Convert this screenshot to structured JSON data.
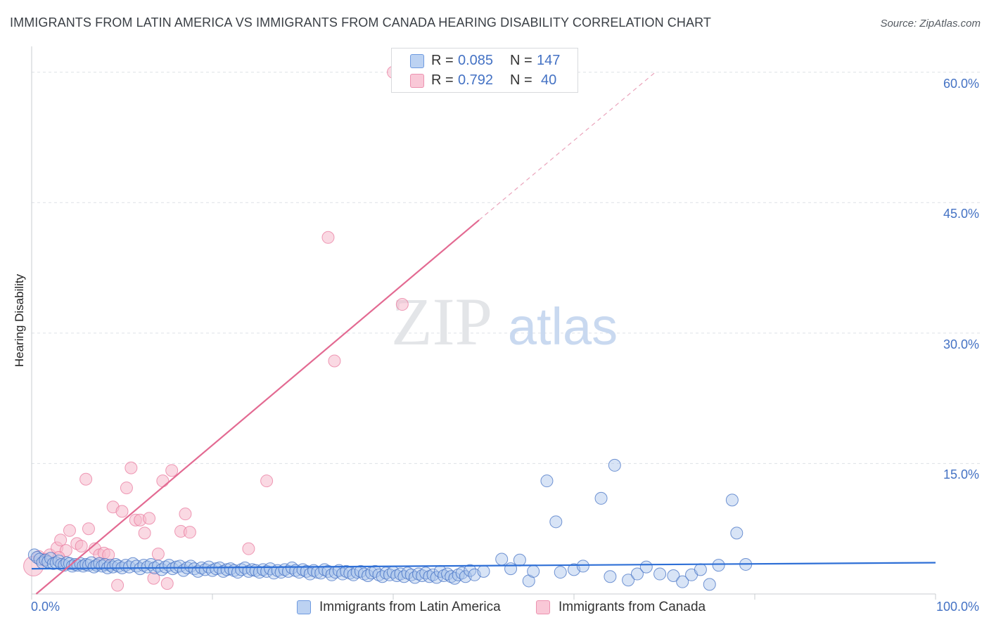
{
  "title": "IMMIGRANTS FROM LATIN AMERICA VS IMMIGRANTS FROM CANADA HEARING DISABILITY CORRELATION CHART",
  "source": "Source: ZipAtlas.com",
  "watermark": {
    "zip": "ZIP",
    "atlas": "atlas"
  },
  "colors": {
    "blue": "#4472c4",
    "blue_fill": "#a9c4ec",
    "blue_line": "#2e6fd6",
    "pink": "#e8739a",
    "pink_fill": "#f6b9cc",
    "pink_line": "#e36a92",
    "grid": "#dde1e6",
    "axis_text": "#4472c4"
  },
  "legend": {
    "rows": [
      {
        "r_label": "R =",
        "r_value": "0.085",
        "n_label": "N =",
        "n_value": "147",
        "color_key": "blue"
      },
      {
        "r_label": "R =",
        "r_value": "0.792",
        "n_label": "N =",
        "n_value": "40",
        "color_key": "pink"
      }
    ]
  },
  "bottom_legend": [
    {
      "label": "Immigrants from Latin America",
      "color_key": "blue"
    },
    {
      "label": "Immigrants from Canada",
      "color_key": "pink"
    }
  ],
  "chart_data": {
    "type": "scatter",
    "title": "IMMIGRANTS FROM LATIN AMERICA VS IMMIGRANTS FROM CANADA HEARING DISABILITY CORRELATION CHART",
    "xlabel": "",
    "ylabel": "Hearing Disability",
    "xlim": [
      0,
      100
    ],
    "ylim": [
      0,
      62
    ],
    "y_ticks": [
      15,
      30,
      45,
      60
    ],
    "y_tick_labels": [
      "15.0%",
      "30.0%",
      "45.0%",
      "60.0%"
    ],
    "x_tick_labels": [
      "0.0%",
      "100.0%"
    ],
    "grid": true,
    "legend_position": "top-center",
    "series": [
      {
        "name": "Immigrants from Latin America",
        "color_key": "blue",
        "R": 0.085,
        "N": 147,
        "trendline": {
          "x0": 0,
          "y0": 2.9,
          "x1": 100,
          "y1": 3.6
        },
        "points": [
          [
            0.3,
            4.5
          ],
          [
            0.6,
            4.2
          ],
          [
            0.9,
            4.0
          ],
          [
            1.2,
            3.6
          ],
          [
            1.5,
            3.9
          ],
          [
            1.8,
            3.7
          ],
          [
            2.1,
            4.1
          ],
          [
            2.4,
            3.5
          ],
          [
            2.7,
            3.6
          ],
          [
            3.0,
            3.8
          ],
          [
            3.3,
            3.4
          ],
          [
            3.6,
            3.3
          ],
          [
            3.9,
            3.6
          ],
          [
            4.2,
            3.5
          ],
          [
            4.5,
            3.2
          ],
          [
            4.8,
            3.4
          ],
          [
            5.1,
            3.3
          ],
          [
            5.4,
            3.5
          ],
          [
            5.7,
            3.2
          ],
          [
            6.0,
            3.4
          ],
          [
            6.3,
            3.3
          ],
          [
            6.6,
            3.6
          ],
          [
            6.9,
            3.1
          ],
          [
            7.2,
            3.3
          ],
          [
            7.5,
            3.5
          ],
          [
            7.8,
            3.2
          ],
          [
            8.1,
            3.4
          ],
          [
            8.4,
            3.0
          ],
          [
            8.7,
            3.3
          ],
          [
            9.0,
            3.1
          ],
          [
            9.3,
            3.4
          ],
          [
            9.6,
            3.2
          ],
          [
            10.0,
            3.0
          ],
          [
            10.4,
            3.3
          ],
          [
            10.8,
            3.1
          ],
          [
            11.2,
            3.5
          ],
          [
            11.6,
            3.2
          ],
          [
            12.0,
            2.9
          ],
          [
            12.4,
            3.3
          ],
          [
            12.8,
            3.1
          ],
          [
            13.2,
            3.4
          ],
          [
            13.6,
            3.0
          ],
          [
            14.0,
            3.2
          ],
          [
            14.4,
            2.8
          ],
          [
            14.8,
            3.1
          ],
          [
            15.2,
            3.3
          ],
          [
            15.6,
            2.9
          ],
          [
            16.0,
            3.1
          ],
          [
            16.4,
            3.2
          ],
          [
            16.8,
            2.7
          ],
          [
            17.2,
            3.0
          ],
          [
            17.6,
            3.2
          ],
          [
            18.0,
            2.9
          ],
          [
            18.4,
            2.6
          ],
          [
            18.8,
            3.0
          ],
          [
            19.2,
            2.8
          ],
          [
            19.6,
            3.1
          ],
          [
            20.0,
            2.7
          ],
          [
            20.4,
            2.9
          ],
          [
            20.8,
            3.0
          ],
          [
            21.2,
            2.6
          ],
          [
            21.6,
            2.8
          ],
          [
            22.0,
            2.9
          ],
          [
            22.4,
            2.7
          ],
          [
            22.8,
            2.5
          ],
          [
            23.2,
            2.8
          ],
          [
            23.6,
            3.0
          ],
          [
            24.0,
            2.6
          ],
          [
            24.4,
            2.8
          ],
          [
            24.8,
            2.7
          ],
          [
            25.2,
            2.5
          ],
          [
            25.6,
            2.8
          ],
          [
            26.0,
            2.6
          ],
          [
            26.4,
            2.9
          ],
          [
            26.8,
            2.4
          ],
          [
            27.2,
            2.7
          ],
          [
            27.6,
            2.5
          ],
          [
            28.0,
            2.8
          ],
          [
            28.4,
            2.6
          ],
          [
            28.8,
            3.0
          ],
          [
            29.2,
            2.7
          ],
          [
            29.6,
            2.5
          ],
          [
            30.0,
            2.8
          ],
          [
            30.4,
            2.6
          ],
          [
            30.8,
            2.3
          ],
          [
            31.2,
            2.7
          ],
          [
            31.6,
            2.5
          ],
          [
            32.0,
            2.4
          ],
          [
            32.4,
            2.8
          ],
          [
            32.8,
            2.6
          ],
          [
            33.2,
            2.2
          ],
          [
            33.6,
            2.5
          ],
          [
            34.0,
            2.7
          ],
          [
            34.4,
            2.3
          ],
          [
            34.8,
            2.6
          ],
          [
            35.2,
            2.4
          ],
          [
            35.6,
            2.2
          ],
          [
            36.0,
            2.5
          ],
          [
            36.4,
            2.6
          ],
          [
            36.8,
            2.3
          ],
          [
            37.2,
            2.1
          ],
          [
            37.6,
            2.4
          ],
          [
            38.0,
            2.6
          ],
          [
            38.4,
            2.2
          ],
          [
            38.8,
            2.0
          ],
          [
            39.2,
            2.4
          ],
          [
            39.6,
            2.2
          ],
          [
            40.0,
            2.5
          ],
          [
            40.4,
            2.1
          ],
          [
            40.8,
            2.3
          ],
          [
            41.2,
            2.0
          ],
          [
            41.6,
            2.4
          ],
          [
            42.0,
            2.2
          ],
          [
            42.4,
            1.9
          ],
          [
            42.8,
            2.3
          ],
          [
            43.2,
            2.1
          ],
          [
            43.6,
            2.4
          ],
          [
            44.0,
            2.0
          ],
          [
            44.4,
            2.2
          ],
          [
            44.8,
            1.9
          ],
          [
            45.2,
            2.6
          ],
          [
            45.6,
            2.1
          ],
          [
            46.0,
            2.3
          ],
          [
            46.4,
            2.0
          ],
          [
            46.8,
            1.8
          ],
          [
            47.2,
            2.2
          ],
          [
            47.6,
            2.4
          ],
          [
            48.0,
            2.0
          ],
          [
            48.5,
            2.7
          ],
          [
            49.0,
            2.2
          ],
          [
            50.0,
            2.6
          ],
          [
            52.0,
            4.0
          ],
          [
            53.0,
            2.9
          ],
          [
            54.0,
            3.9
          ],
          [
            55.0,
            1.5
          ],
          [
            55.5,
            2.6
          ],
          [
            57.0,
            13.0
          ],
          [
            58.0,
            8.3
          ],
          [
            58.5,
            2.5
          ],
          [
            60.0,
            2.8
          ],
          [
            61.0,
            3.2
          ],
          [
            63.0,
            11.0
          ],
          [
            64.0,
            2.0
          ],
          [
            64.5,
            14.8
          ],
          [
            66.0,
            1.6
          ],
          [
            67.0,
            2.3
          ],
          [
            68.0,
            3.1
          ],
          [
            69.5,
            2.3
          ],
          [
            71.0,
            2.1
          ],
          [
            72.0,
            1.4
          ],
          [
            73.0,
            2.2
          ],
          [
            74.0,
            2.8
          ],
          [
            75.0,
            1.1
          ],
          [
            76.0,
            3.3
          ],
          [
            77.5,
            10.8
          ],
          [
            78.0,
            7.0
          ],
          [
            79.0,
            3.4
          ]
        ]
      },
      {
        "name": "Immigrants from Canada",
        "color_key": "pink",
        "R": 0.792,
        "N": 40,
        "trendline": {
          "x0": 0.5,
          "y0": 0.0,
          "x1": 49.5,
          "y1": 43.0
        },
        "trendline_dashed": {
          "x0": 49.5,
          "y0": 43.0,
          "x1": 69.0,
          "y1": 60.0
        },
        "points": [
          [
            0.2,
            3.2
          ],
          [
            0.8,
            4.3
          ],
          [
            1.5,
            4.0
          ],
          [
            2.0,
            4.5
          ],
          [
            2.8,
            5.3
          ],
          [
            3.2,
            6.2
          ],
          [
            3.8,
            5.0
          ],
          [
            4.2,
            7.3
          ],
          [
            5.0,
            5.8
          ],
          [
            5.5,
            5.5
          ],
          [
            6.0,
            13.2
          ],
          [
            6.3,
            7.5
          ],
          [
            7.0,
            5.2
          ],
          [
            7.5,
            4.5
          ],
          [
            8.0,
            4.7
          ],
          [
            8.5,
            4.5
          ],
          [
            9.0,
            10.0
          ],
          [
            9.5,
            1.0
          ],
          [
            10.0,
            9.5
          ],
          [
            10.5,
            12.2
          ],
          [
            11.0,
            14.5
          ],
          [
            11.5,
            8.5
          ],
          [
            12.0,
            8.5
          ],
          [
            12.5,
            7.0
          ],
          [
            13.0,
            8.7
          ],
          [
            13.5,
            1.8
          ],
          [
            14.0,
            4.6
          ],
          [
            14.5,
            13.0
          ],
          [
            15.0,
            1.2
          ],
          [
            15.5,
            14.2
          ],
          [
            16.5,
            7.2
          ],
          [
            17.0,
            9.2
          ],
          [
            17.5,
            7.1
          ],
          [
            24.0,
            5.2
          ],
          [
            26.0,
            13.0
          ],
          [
            32.8,
            41.0
          ],
          [
            33.5,
            26.8
          ],
          [
            41.0,
            33.3
          ],
          [
            40.0,
            60.0
          ],
          [
            3.0,
            4.2
          ]
        ]
      }
    ]
  }
}
